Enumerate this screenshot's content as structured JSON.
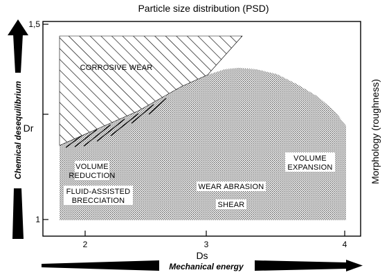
{
  "title": "Particle size distribution (PSD)",
  "x_axis": {
    "symbol": "Ds",
    "ticks": [
      "2",
      "3",
      "4"
    ],
    "arrow_label": "Mechanical energy"
  },
  "y_axis": {
    "symbol": "Dr",
    "ticks": [
      "1,5",
      "1"
    ],
    "arrow_label": "Chemical desequilibrium"
  },
  "right_label": "Morphology (roughness)",
  "regions": {
    "corrosive_wear": "CORROSIVE WEAR",
    "volume_reduction": [
      "VOLUME",
      "REDUCTION"
    ],
    "fluid_assisted": [
      "FLUID-ASSISTED",
      "BRECCIATION"
    ],
    "wear_abrasion": "WEAR ABRASION",
    "shear": "SHEAR",
    "volume_expansion": [
      "VOLUME",
      "EXPANSION"
    ]
  },
  "colors": {
    "ink": "#000000",
    "background": "#ffffff",
    "stipple": "#555555"
  }
}
